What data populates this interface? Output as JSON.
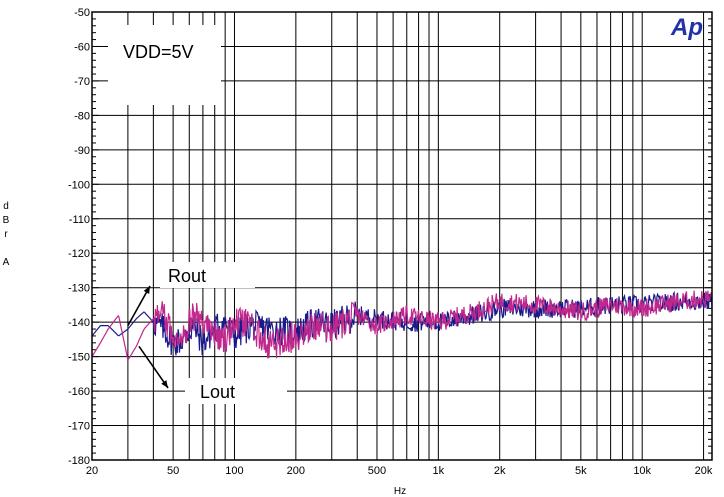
{
  "chart_data": {
    "type": "line",
    "title": "",
    "xlabel": "Hz",
    "ylabel": "dBr A",
    "ylabel_lines": [
      "d",
      "B",
      "r",
      "",
      "A"
    ],
    "xscale": "log",
    "xlim": [
      20,
      22000
    ],
    "ylim": [
      -180,
      -50
    ],
    "grid": true,
    "x_ticks": [
      20,
      50,
      100,
      200,
      500,
      1000,
      2000,
      5000,
      10000,
      20000
    ],
    "x_tick_labels": [
      "20",
      "50",
      "100",
      "200",
      "500",
      "1k",
      "2k",
      "5k",
      "10k",
      "20k"
    ],
    "y_ticks": [
      -50,
      -60,
      -70,
      -80,
      -90,
      -100,
      -110,
      -120,
      -130,
      -140,
      -150,
      -160,
      -170,
      -180
    ],
    "y_tick_labels": [
      "-50",
      "-60",
      "-70",
      "-80",
      "-90",
      "-100",
      "-110",
      "-120",
      "-130",
      "-140",
      "-150",
      "-160",
      "-170",
      "-180"
    ],
    "series": [
      {
        "name": "Rout",
        "color": "#1a1a8c",
        "x": [
          20,
          22,
          24,
          27,
          30,
          33,
          36,
          40,
          45,
          50,
          56,
          63,
          70,
          80,
          90,
          100,
          120,
          150,
          200,
          250,
          300,
          400,
          500,
          700,
          1000,
          1500,
          2000,
          3000,
          5000,
          7000,
          10000,
          15000,
          22000
        ],
        "y": [
          -144,
          -141,
          -141,
          -144,
          -142,
          -139,
          -137,
          -140,
          -142,
          -146,
          -145,
          -141,
          -146,
          -142,
          -140,
          -144,
          -141,
          -142,
          -143,
          -140,
          -141,
          -138,
          -139,
          -140,
          -140,
          -138,
          -136,
          -136,
          -136,
          -135,
          -135,
          -134,
          -134
        ]
      },
      {
        "name": "Lout",
        "color": "#c0288c",
        "x": [
          20,
          22,
          24,
          27,
          30,
          33,
          36,
          40,
          45,
          50,
          56,
          63,
          70,
          80,
          90,
          100,
          120,
          150,
          200,
          250,
          300,
          400,
          500,
          700,
          1000,
          1500,
          2000,
          3000,
          5000,
          7000,
          10000,
          15000,
          22000
        ],
        "y": [
          -150,
          -146,
          -142,
          -138,
          -151,
          -147,
          -142,
          -139,
          -138,
          -144,
          -143,
          -138,
          -140,
          -143,
          -145,
          -140,
          -141,
          -147,
          -144,
          -141,
          -142,
          -138,
          -141,
          -138,
          -140,
          -137,
          -134,
          -135,
          -137,
          -135,
          -136,
          -134,
          -133
        ]
      }
    ],
    "annotations": [
      {
        "text": "VDD=5V"
      },
      {
        "text": "Rout",
        "points_to_x": 30,
        "points_to_y": -141
      },
      {
        "text": "Lout",
        "points_to_x": 34,
        "points_to_y": -147
      }
    ],
    "logo": "Ap"
  }
}
